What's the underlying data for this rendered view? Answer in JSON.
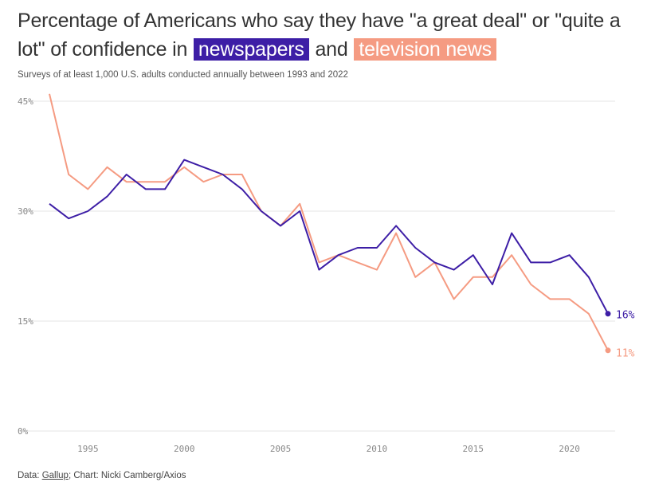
{
  "header": {
    "title_part1": "Percentage of Americans who say they have \"a great deal\" or \"quite a lot\" of confidence in",
    "highlight_newspapers": "newspapers",
    "title_and": "and",
    "highlight_tv": "television news",
    "subtitle": "Surveys of at least 1,000 U.S. adults conducted annually between 1993 and 2022"
  },
  "footer": {
    "data_prefix": "Data: ",
    "source": "Gallup",
    "credit": "; Chart: Nicki Camberg/Axios"
  },
  "colors": {
    "newspapers": "#3d1ea6",
    "television": "#f59b82",
    "grid": "#e6e6e6"
  },
  "chart_data": {
    "type": "line",
    "title": "Percentage of Americans who say they have \"a great deal\" or \"quite a lot\" of confidence in newspapers and television news",
    "xlabel": "",
    "ylabel": "",
    "x": [
      1993,
      1994,
      1995,
      1996,
      1997,
      1998,
      1999,
      2000,
      2001,
      2002,
      2003,
      2004,
      2005,
      2006,
      2007,
      2008,
      2009,
      2010,
      2011,
      2012,
      2013,
      2014,
      2015,
      2016,
      2017,
      2018,
      2019,
      2020,
      2021,
      2022
    ],
    "xlim": [
      1993,
      2022
    ],
    "xticks": [
      1995,
      2000,
      2005,
      2010,
      2015,
      2020
    ],
    "ylim": [
      0,
      45
    ],
    "yticks": [
      0,
      15,
      30,
      45
    ],
    "ytick_labels": [
      "0%",
      "15%",
      "30%",
      "45%"
    ],
    "grid": true,
    "series": [
      {
        "name": "newspapers",
        "values": [
          31,
          29,
          30,
          32,
          35,
          33,
          33,
          37,
          36,
          35,
          33,
          30,
          28,
          30,
          22,
          24,
          25,
          25,
          28,
          25,
          23,
          22,
          24,
          20,
          27,
          23,
          23,
          24,
          21,
          16
        ],
        "end_label": "16%"
      },
      {
        "name": "television news",
        "values": [
          46,
          35,
          33,
          36,
          34,
          34,
          34,
          36,
          34,
          35,
          35,
          30,
          28,
          31,
          23,
          24,
          23,
          22,
          27,
          21,
          23,
          18,
          21,
          21,
          24,
          20,
          18,
          18,
          16,
          11
        ],
        "end_label": "11%"
      }
    ]
  }
}
